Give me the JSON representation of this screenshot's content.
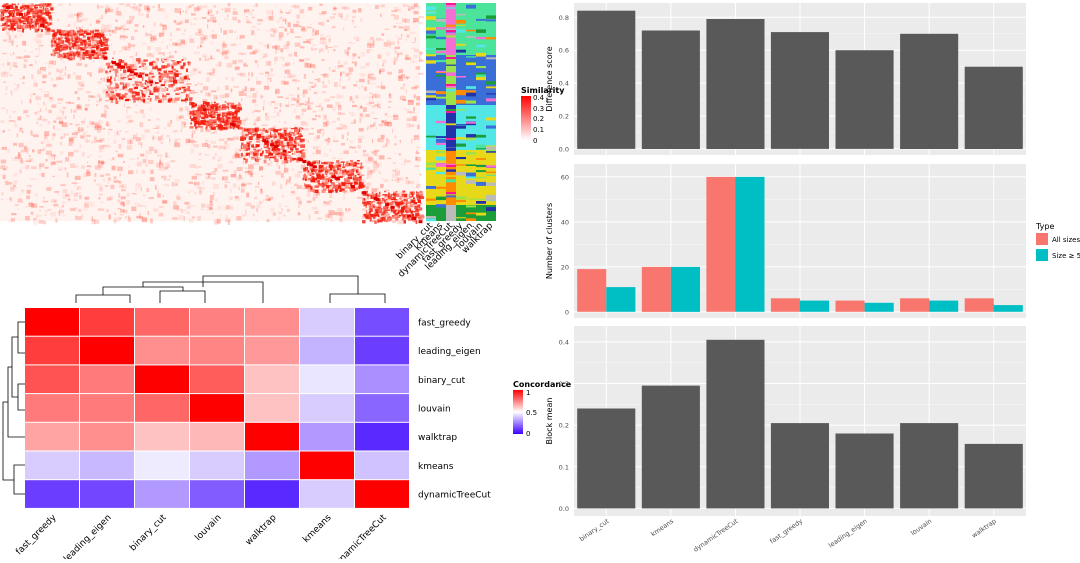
{
  "panels": {
    "similarity_heatmap": {
      "legend_title": "Similarity",
      "legend_ticks": [
        "0.4",
        "0.3",
        "0.2",
        "0.1",
        "0"
      ],
      "annotation_labels": [
        "binary_cut",
        "kmeans",
        "dynamicTreeCut",
        "fast_greedy",
        "leading_eigen",
        "louvain",
        "walktrap"
      ],
      "colors": {
        "high": "#ff0000",
        "low": "#ffffff"
      }
    },
    "concordance_legend": {
      "title": "Concordance",
      "ticks": [
        "1",
        "0.5",
        "0"
      ],
      "colors": {
        "high": "#ff0000",
        "mid": "#ffffff",
        "low": "#3b00ff"
      }
    },
    "bar_legend": {
      "title": "Type",
      "items": [
        {
          "label": "All sizes",
          "color": "#f8766d"
        },
        {
          "label": "Size ≥ 5",
          "color": "#00bfc4"
        }
      ]
    }
  },
  "chart_data": [
    {
      "type": "heatmap",
      "name": "concordance",
      "rows": [
        "fast_greedy",
        "leading_eigen",
        "binary_cut",
        "louvain",
        "walktrap",
        "kmeans",
        "dynamicTreeCut"
      ],
      "cols": [
        "fast_greedy",
        "leading_eigen",
        "binary_cut",
        "louvain",
        "walktrap",
        "kmeans",
        "dynamicTreeCut"
      ],
      "values": [
        [
          1.0,
          0.88,
          0.8,
          0.75,
          0.72,
          0.4,
          0.15
        ],
        [
          0.88,
          1.0,
          0.72,
          0.74,
          0.7,
          0.35,
          0.12
        ],
        [
          0.84,
          0.76,
          1.0,
          0.82,
          0.62,
          0.45,
          0.28
        ],
        [
          0.76,
          0.76,
          0.8,
          1.0,
          0.62,
          0.4,
          0.2
        ],
        [
          0.68,
          0.72,
          0.62,
          0.64,
          1.0,
          0.3,
          0.08
        ],
        [
          0.4,
          0.36,
          0.46,
          0.4,
          0.3,
          1.0,
          0.38
        ],
        [
          0.12,
          0.14,
          0.3,
          0.18,
          0.08,
          0.4,
          1.0
        ]
      ],
      "legend_range": [
        0,
        1
      ]
    },
    {
      "type": "bar",
      "name": "difference_score",
      "categories": [
        "binary_cut",
        "kmeans",
        "dynamicTreeCut",
        "fast_greedy",
        "leading_eigen",
        "louvain",
        "walktrap"
      ],
      "values": [
        0.84,
        0.72,
        0.79,
        0.71,
        0.6,
        0.7,
        0.5
      ],
      "ylabel": "Difference score",
      "ylim": [
        0,
        0.85
      ],
      "yticks": [
        "0.0",
        "0.2",
        "0.4",
        "0.6",
        "0.8"
      ],
      "color": "#595959"
    },
    {
      "type": "bar",
      "name": "number_of_clusters",
      "categories": [
        "binary_cut",
        "kmeans",
        "dynamicTreeCut",
        "fast_greedy",
        "leading_eigen",
        "louvain",
        "walktrap"
      ],
      "series": [
        {
          "name": "All sizes",
          "values": [
            19,
            20,
            60,
            6,
            5,
            6,
            6
          ]
        },
        {
          "name": "Size ≥ 5",
          "values": [
            11,
            20,
            60,
            5,
            4,
            5,
            3
          ]
        }
      ],
      "ylabel": "Number of clusters",
      "ylim": [
        0,
        63
      ],
      "yticks": [
        "0",
        "20",
        "40",
        "60"
      ],
      "legend": "right"
    },
    {
      "type": "bar",
      "name": "block_mean",
      "categories": [
        "binary_cut",
        "kmeans",
        "dynamicTreeCut",
        "fast_greedy",
        "leading_eigen",
        "louvain",
        "walktrap"
      ],
      "values": [
        0.24,
        0.295,
        0.405,
        0.205,
        0.18,
        0.205,
        0.155
      ],
      "ylabel": "Block mean",
      "ylim": [
        0,
        0.42
      ],
      "yticks": [
        "0.0",
        "0.1",
        "0.2",
        "0.3",
        "0.4"
      ],
      "color": "#595959"
    }
  ]
}
